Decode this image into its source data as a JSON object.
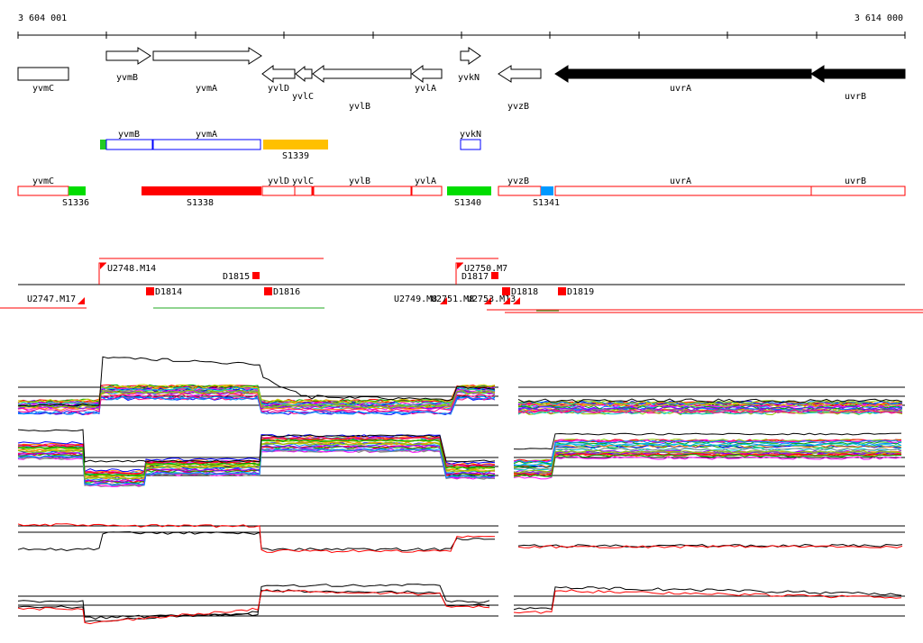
{
  "coordinates": {
    "start": "3 604 001",
    "end": "3 614 000"
  },
  "genes": [
    {
      "name": "yvmC",
      "label": "yvmC",
      "strand": "none",
      "filled": false
    },
    {
      "name": "yvmB",
      "label": "yvmB",
      "strand": "+",
      "filled": false
    },
    {
      "name": "yvmA",
      "label": "yvmA",
      "strand": "+",
      "filled": false
    },
    {
      "name": "yvlD",
      "label": "yvlD",
      "strand": "-",
      "filled": false
    },
    {
      "name": "yvlC",
      "label": "yvlC",
      "strand": "-",
      "filled": false
    },
    {
      "name": "yvlB",
      "label": "yvlB",
      "strand": "-",
      "filled": false
    },
    {
      "name": "yvlA",
      "label": "yvlA",
      "strand": "-",
      "filled": false
    },
    {
      "name": "yvkN",
      "label": "yvkN",
      "strand": "+",
      "filled": false
    },
    {
      "name": "yvzB",
      "label": "yvzB",
      "strand": "-",
      "filled": false
    },
    {
      "name": "uvrA",
      "label": "uvrA",
      "strand": "-",
      "filled": true
    },
    {
      "name": "uvrB",
      "label": "uvrB",
      "strand": "-",
      "filled": true
    }
  ],
  "plus_strand_track": {
    "genes": [
      "yvmB",
      "yvmA",
      "yvkN"
    ],
    "segments": [
      {
        "label": "S1339",
        "color": "#ffc000"
      }
    ],
    "start_marker_color": "#22cc22",
    "outline_color": "#0000ff"
  },
  "minus_strand_track": {
    "gene_labels": [
      "yvmC",
      "yvlD",
      "yvlC",
      "yvlB",
      "yvlA",
      "yvzB",
      "uvrA",
      "uvrB"
    ],
    "segments": [
      {
        "label": "S1336",
        "color": "#00dd00"
      },
      {
        "label": "S1338",
        "color": "#ff0000"
      },
      {
        "label": "S1340",
        "color": "#00dd00"
      },
      {
        "label": "S1341",
        "color": "#0099ff"
      }
    ],
    "outline_color": "#ff0000"
  },
  "breakpoints": [
    {
      "label": "U2748.M14"
    },
    {
      "label": "D1815"
    },
    {
      "label": "U2747.M17"
    },
    {
      "label": "D1814"
    },
    {
      "label": "D1816"
    },
    {
      "label": "U2750.M7"
    },
    {
      "label": "D1817"
    },
    {
      "label": "U2749.M8"
    },
    {
      "label": "U2751.M8"
    },
    {
      "label": "U2753.M13"
    },
    {
      "label": "D1818"
    },
    {
      "label": "D1819"
    }
  ],
  "colors": {
    "feature_fill": "#000000",
    "breakpoint": "#ff0000",
    "red_trace": "#ff0000",
    "black_trace": "#000000",
    "green_trace": "#22aa22"
  },
  "trace_palette": [
    "#ff0000",
    "#00aa00",
    "#0000ff",
    "#ff00ff",
    "#00cccc",
    "#cccc00",
    "#ff8800",
    "#8800ff",
    "#888888",
    "#0088ff",
    "#ff0088",
    "#88cc00"
  ]
}
